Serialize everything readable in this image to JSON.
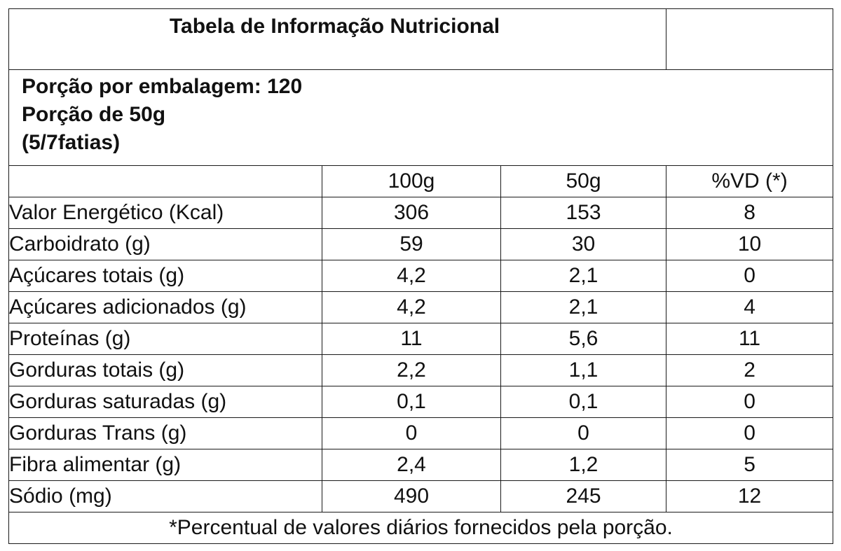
{
  "title": "Tabela de Informação Nutricional",
  "portion": {
    "per_package": "Porção por embalagem: 120",
    "portion_size": "Porção de 50g",
    "slices": "(5/7fatias)"
  },
  "columns": [
    "",
    "100g",
    "50g",
    "%VD (*)"
  ],
  "rows": [
    {
      "label": "Valor Energético (Kcal)",
      "v100": "306",
      "v50": "153",
      "vd": "8"
    },
    {
      "label": "Carboidrato (g)",
      "v100": "59",
      "v50": "30",
      "vd": "10"
    },
    {
      "label": "Açúcares totais (g)",
      "v100": "4,2",
      "v50": "2,1",
      "vd": "0"
    },
    {
      "label": "Açúcares adicionados (g)",
      "v100": "4,2",
      "v50": "2,1",
      "vd": "4"
    },
    {
      "label": "Proteínas (g)",
      "v100": "11",
      "v50": "5,6",
      "vd": "11"
    },
    {
      "label": "Gorduras totais (g)",
      "v100": "2,2",
      "v50": "1,1",
      "vd": "2"
    },
    {
      "label": "Gorduras saturadas (g)",
      "v100": "0,1",
      "v50": "0,1",
      "vd": "0"
    },
    {
      "label": "Gorduras Trans (g)",
      "v100": "0",
      "v50": "0",
      "vd": "0"
    },
    {
      "label": "Fibra alimentar (g)",
      "v100": "2,4",
      "v50": "1,2",
      "vd": "5"
    },
    {
      "label": "Sódio (mg)",
      "v100": "490",
      "v50": "245",
      "vd": "12"
    }
  ],
  "footnote": "*Percentual de valores diários fornecidos pela porção."
}
